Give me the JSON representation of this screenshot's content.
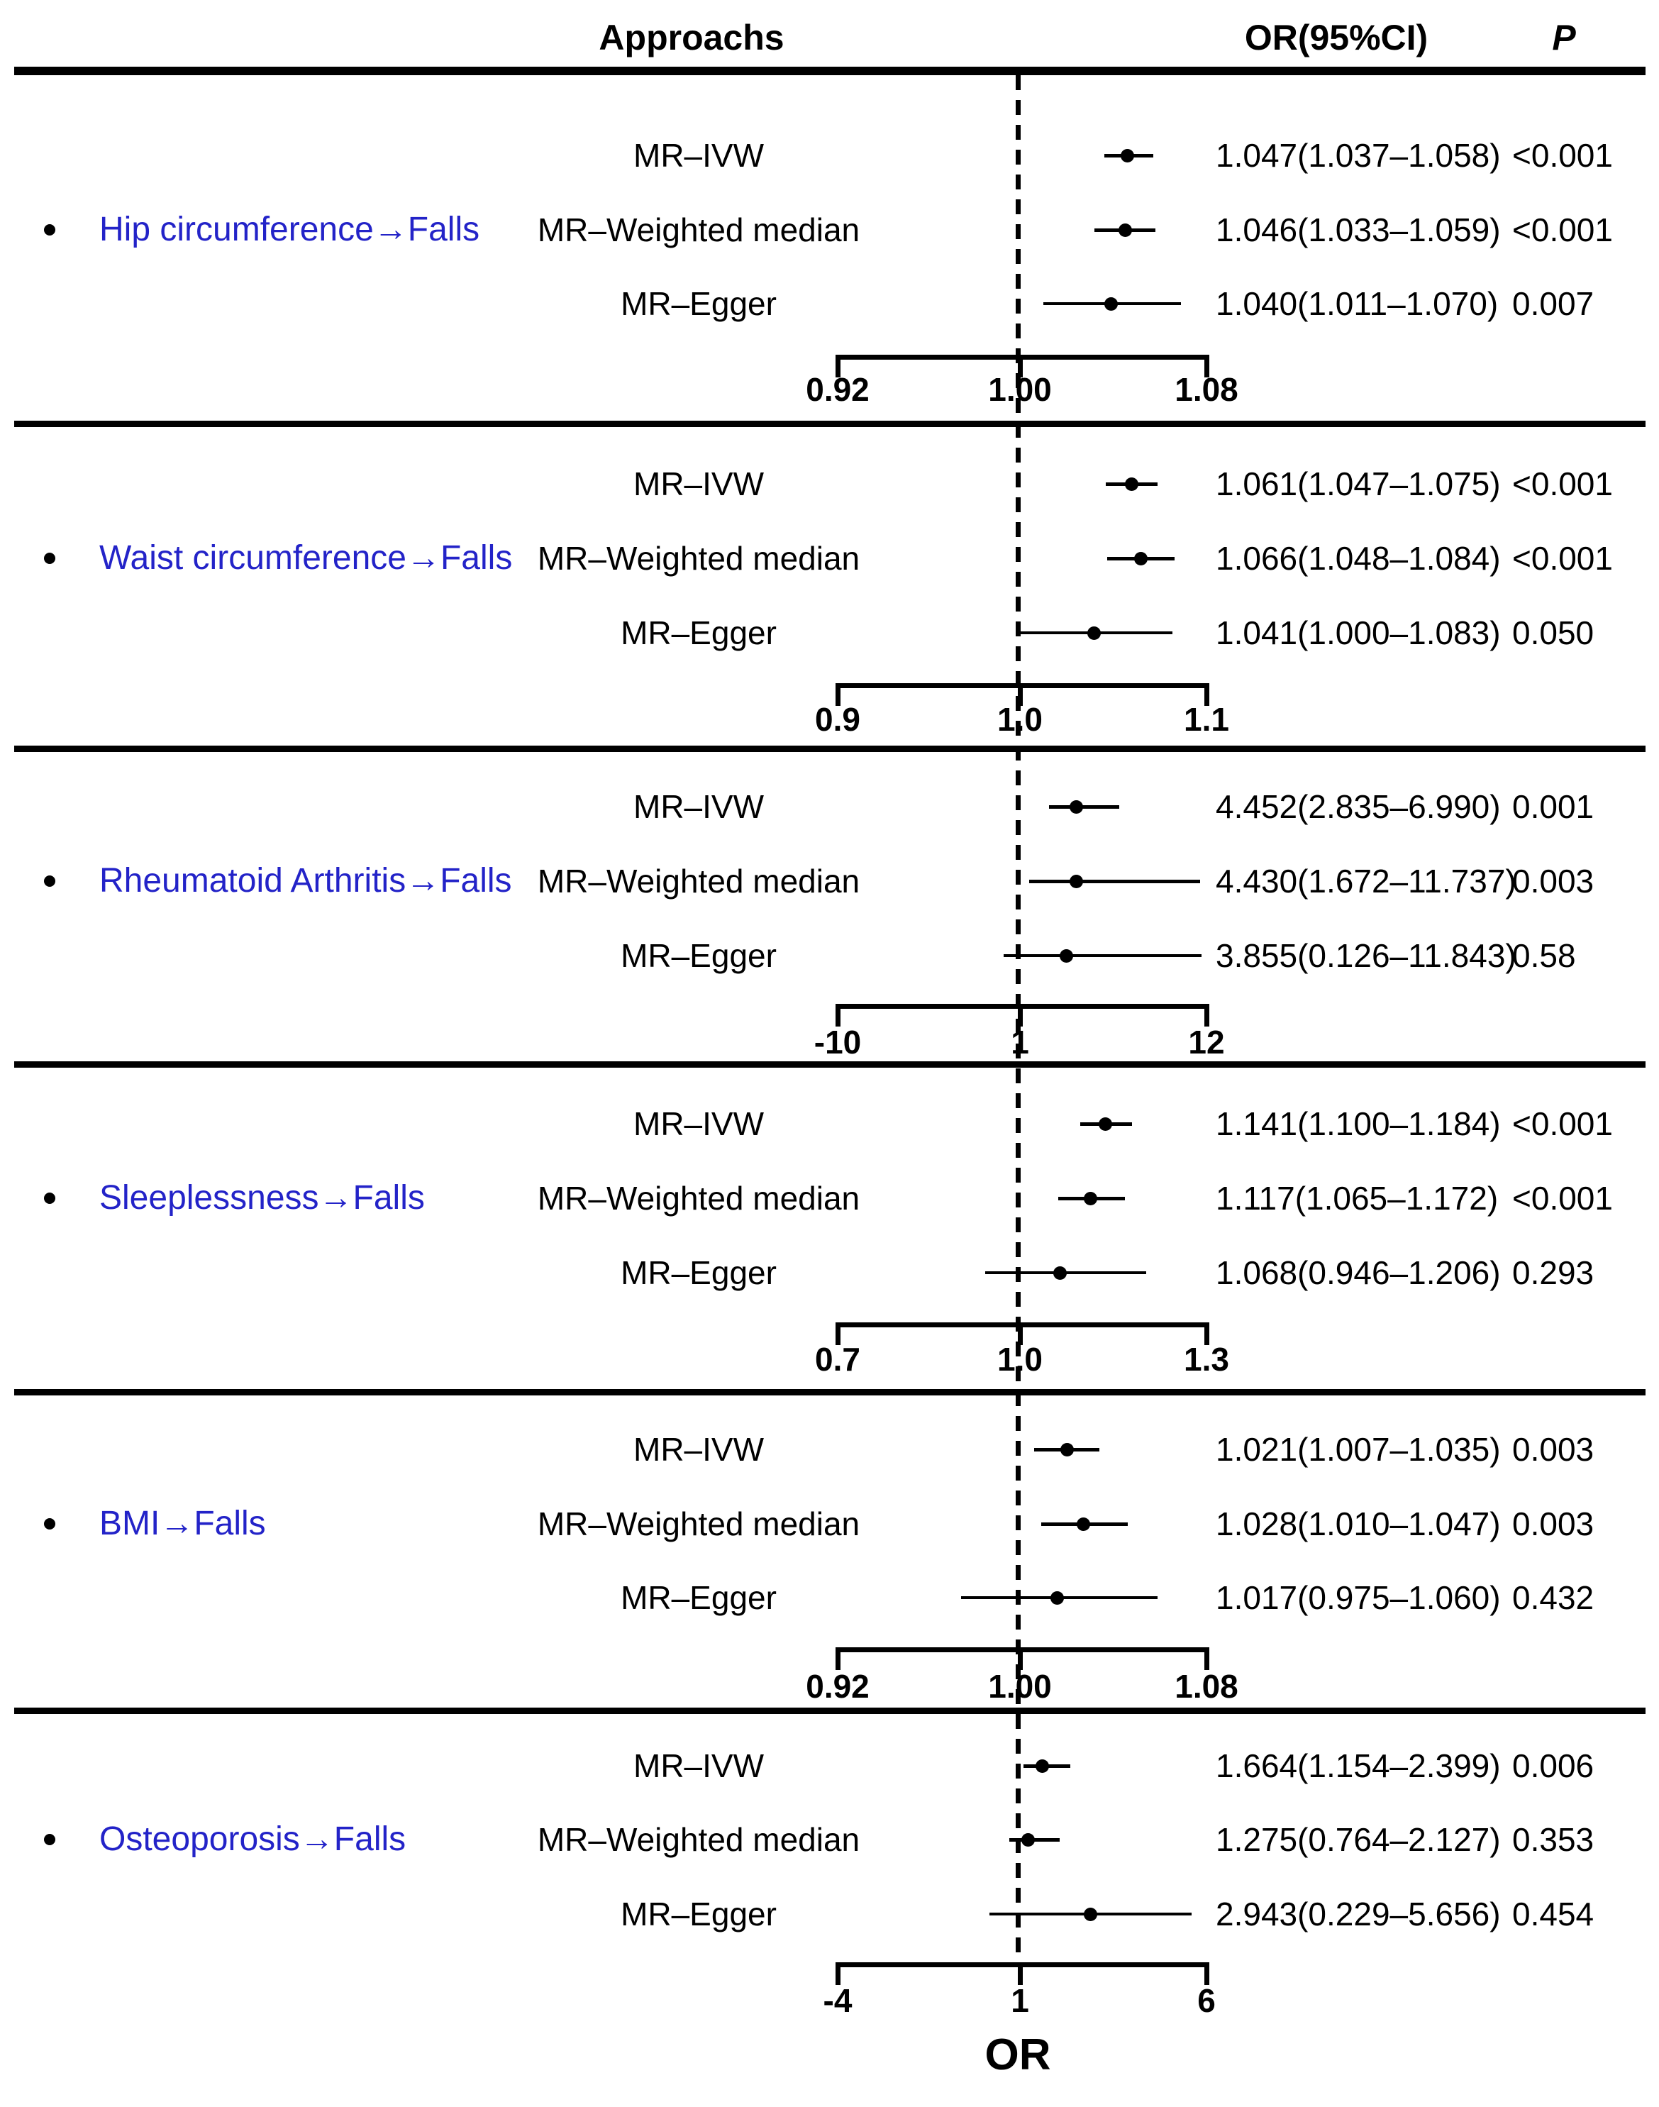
{
  "header": {
    "approaches_label": "Approachs",
    "or_ci_label": "OR(95%CI)",
    "p_label": "P"
  },
  "x_axis_title": "OR",
  "bullet_glyph": "•",
  "colors": {
    "exposure_text": "#2323C8",
    "plot_ink": "#000000",
    "background": "#FFFFFF"
  },
  "chart_data": {
    "type": "forest",
    "reference_line_value": 1,
    "legend_position": "none",
    "grid": false,
    "sections": [
      {
        "exposure_label": "Hip circumference→Falls",
        "axis": {
          "min": 0.92,
          "center": 1.0,
          "max": 1.08,
          "tick_labels": [
            "0.92",
            "1.00",
            "1.08"
          ]
        },
        "rows": [
          {
            "approach": "MR–IVW",
            "or": 1.047,
            "ci_low": 1.037,
            "ci_high": 1.058,
            "or_ci_label": "1.047(1.037–1.058)",
            "p_label": "<0.001"
          },
          {
            "approach": "MR–Weighted median",
            "or": 1.046,
            "ci_low": 1.033,
            "ci_high": 1.059,
            "or_ci_label": "1.046(1.033–1.059)",
            "p_label": "<0.001"
          },
          {
            "approach": "MR–Egger",
            "or": 1.04,
            "ci_low": 1.011,
            "ci_high": 1.07,
            "or_ci_label": "1.040(1.011–1.070)",
            "p_label": "0.007"
          }
        ]
      },
      {
        "exposure_label": "Waist circumference→Falls",
        "axis": {
          "min": 0.9,
          "center": 1.0,
          "max": 1.1,
          "tick_labels": [
            "0.9",
            "1.0",
            "1.1"
          ]
        },
        "rows": [
          {
            "approach": "MR–IVW",
            "or": 1.061,
            "ci_low": 1.047,
            "ci_high": 1.075,
            "or_ci_label": "1.061(1.047–1.075)",
            "p_label": "<0.001"
          },
          {
            "approach": "MR–Weighted median",
            "or": 1.066,
            "ci_low": 1.048,
            "ci_high": 1.084,
            "or_ci_label": "1.066(1.048–1.084)",
            "p_label": "<0.001"
          },
          {
            "approach": "MR–Egger",
            "or": 1.041,
            "ci_low": 1.0,
            "ci_high": 1.083,
            "or_ci_label": "1.041(1.000–1.083)",
            "p_label": "0.050"
          }
        ]
      },
      {
        "exposure_label": "Rheumatoid Arthritis→Falls",
        "axis": {
          "min": -10,
          "center": 1,
          "max": 12,
          "tick_labels": [
            "-10",
            "1",
            "12"
          ]
        },
        "rows": [
          {
            "approach": "MR–IVW",
            "or": 4.452,
            "ci_low": 2.835,
            "ci_high": 6.99,
            "or_ci_label": "4.452(2.835–6.990)",
            "p_label": "0.001"
          },
          {
            "approach": "MR–Weighted median",
            "or": 4.43,
            "ci_low": 1.672,
            "ci_high": 11.737,
            "or_ci_label": "4.430(1.672–11.737)",
            "p_label": "0.003"
          },
          {
            "approach": "MR–Egger",
            "or": 3.855,
            "ci_low": 0.126,
            "ci_high": 11.843,
            "or_ci_label": "3.855(0.126–11.843)",
            "p_label": "0.58"
          }
        ]
      },
      {
        "exposure_label": "Sleeplessness→Falls",
        "axis": {
          "min": 0.7,
          "center": 1.0,
          "max": 1.3,
          "tick_labels": [
            "0.7",
            "1.0",
            "1.3"
          ]
        },
        "rows": [
          {
            "approach": "MR–IVW",
            "or": 1.141,
            "ci_low": 1.1,
            "ci_high": 1.184,
            "or_ci_label": "1.141(1.100–1.184)",
            "p_label": "<0.001"
          },
          {
            "approach": "MR–Weighted median",
            "or": 1.117,
            "ci_low": 1.065,
            "ci_high": 1.172,
            "or_ci_label": "1.117(1.065–1.172)",
            "p_label": "<0.001"
          },
          {
            "approach": "MR–Egger",
            "or": 1.068,
            "ci_low": 0.946,
            "ci_high": 1.206,
            "or_ci_label": "1.068(0.946–1.206)",
            "p_label": "0.293"
          }
        ]
      },
      {
        "exposure_label": "BMI→Falls",
        "axis": {
          "min": 0.92,
          "center": 1.0,
          "max": 1.08,
          "tick_labels": [
            "0.92",
            "1.00",
            "1.08"
          ]
        },
        "rows": [
          {
            "approach": "MR–IVW",
            "or": 1.021,
            "ci_low": 1.007,
            "ci_high": 1.035,
            "or_ci_label": "1.021(1.007–1.035)",
            "p_label": "0.003"
          },
          {
            "approach": "MR–Weighted median",
            "or": 1.028,
            "ci_low": 1.01,
            "ci_high": 1.047,
            "or_ci_label": "1.028(1.010–1.047)",
            "p_label": "0.003"
          },
          {
            "approach": "MR–Egger",
            "or": 1.017,
            "ci_low": 0.975,
            "ci_high": 1.06,
            "or_ci_label": "1.017(0.975–1.060)",
            "p_label": "0.432"
          }
        ]
      },
      {
        "exposure_label": "Osteoporosis→Falls",
        "axis": {
          "min": -4,
          "center": 1,
          "max": 6,
          "tick_labels": [
            "-4",
            "1",
            "6"
          ]
        },
        "rows": [
          {
            "approach": "MR–IVW",
            "or": 1.664,
            "ci_low": 1.154,
            "ci_high": 2.399,
            "or_ci_label": "1.664(1.154–2.399)",
            "p_label": "0.006"
          },
          {
            "approach": "MR–Weighted median",
            "or": 1.275,
            "ci_low": 0.764,
            "ci_high": 2.127,
            "or_ci_label": "1.275(0.764–2.127)",
            "p_label": "0.353"
          },
          {
            "approach": "MR–Egger",
            "or": 2.943,
            "ci_low": 0.229,
            "ci_high": 5.656,
            "or_ci_label": "2.943(0.229–5.656)",
            "p_label": "0.454"
          }
        ]
      }
    ]
  }
}
